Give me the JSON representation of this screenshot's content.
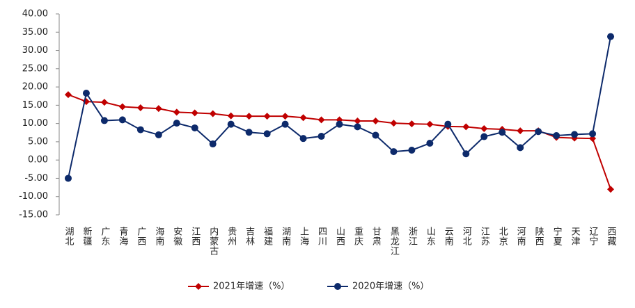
{
  "chart_data": {
    "type": "line",
    "categories": [
      "湖北",
      "新疆",
      "广东",
      "青海",
      "广西",
      "海南",
      "安徽",
      "江西",
      "内蒙古",
      "贵州",
      "吉林",
      "福建",
      "湖南",
      "上海",
      "四川",
      "山西",
      "重庆",
      "甘肃",
      "黑龙江",
      "浙江",
      "山东",
      "云南",
      "河北",
      "江苏",
      "北京",
      "河南",
      "陕西",
      "宁夏",
      "天津",
      "辽宁",
      "西藏"
    ],
    "series": [
      {
        "name": "2021年增速（%）",
        "color": "#c00000",
        "marker": "diamond",
        "values": [
          17.9,
          16.0,
          15.8,
          14.6,
          14.3,
          14.1,
          13.1,
          12.9,
          12.7,
          12.1,
          12.0,
          12.0,
          12.0,
          11.6,
          11.0,
          11.0,
          10.7,
          10.7,
          10.1,
          9.9,
          9.8,
          9.2,
          9.1,
          8.6,
          8.4,
          8.0,
          8.0,
          6.2,
          6.0,
          5.9,
          -8.0
        ]
      },
      {
        "name": "2020年增速（%）",
        "color": "#0d2a6b",
        "marker": "circle",
        "values": [
          -5.0,
          18.3,
          10.8,
          11.0,
          8.3,
          6.9,
          10.1,
          8.8,
          4.4,
          9.8,
          7.6,
          7.2,
          9.8,
          5.9,
          6.5,
          9.8,
          9.1,
          6.8,
          2.3,
          2.7,
          4.6,
          9.8,
          1.7,
          6.4,
          7.6,
          3.4,
          7.8,
          6.7,
          7.0,
          7.2,
          33.8
        ]
      }
    ],
    "ylim": [
      -15,
      40
    ],
    "yticks": [
      {
        "value": -15,
        "label": "-15.00"
      },
      {
        "value": -10,
        "label": "-10.00"
      },
      {
        "value": -5,
        "label": "-5.00"
      },
      {
        "value": 0,
        "label": "0.00"
      },
      {
        "value": 5,
        "label": "5.00"
      },
      {
        "value": 10,
        "label": "10.00"
      },
      {
        "value": 15,
        "label": "15.00"
      },
      {
        "value": 20,
        "label": "20.00"
      },
      {
        "value": 25,
        "label": "25.00"
      },
      {
        "value": 30,
        "label": "30.00"
      },
      {
        "value": 35,
        "label": "35.00"
      },
      {
        "value": 40,
        "label": "40.00"
      }
    ],
    "grid": false,
    "legend": "bottom"
  }
}
